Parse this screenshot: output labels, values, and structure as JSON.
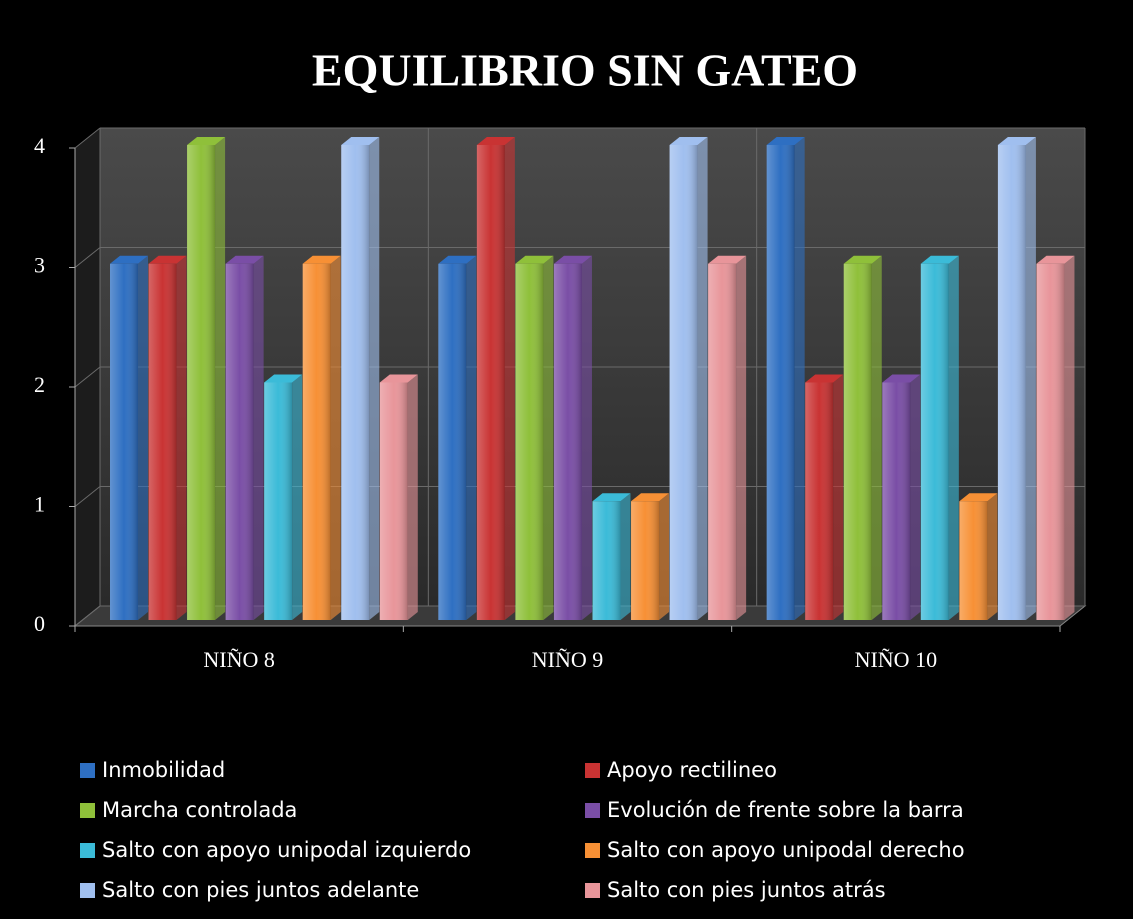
{
  "chart_data": {
    "type": "bar3d",
    "title": "EQUILIBRIO SIN GATEO",
    "categories": [
      "NIÑO 8",
      "NIÑO 9",
      "NIÑO 10"
    ],
    "series": [
      {
        "name": "Inmobilidad",
        "color": "#2e6fc2",
        "values": [
          3,
          3,
          4
        ]
      },
      {
        "name": "Apoyo rectilineo",
        "color": "#c93333",
        "values": [
          3,
          4,
          2
        ]
      },
      {
        "name": "Marcha controlada",
        "color": "#8fc03a",
        "values": [
          4,
          3,
          3
        ]
      },
      {
        "name": "Evolución de frente sobre la barra",
        "color": "#7a4ea6",
        "values": [
          3,
          3,
          2
        ]
      },
      {
        "name": "Salto con apoyo unipodal izquierdo",
        "color": "#3bbbd8",
        "values": [
          2,
          1,
          3
        ]
      },
      {
        "name": "Salto con apoyo unipodal derecho",
        "color": "#f79035",
        "values": [
          3,
          1,
          1
        ]
      },
      {
        "name": "Salto con pies juntos adelante",
        "color": "#a0bfef",
        "values": [
          4,
          4,
          4
        ]
      },
      {
        "name": "Salto con pies juntos atrás",
        "color": "#e8959a",
        "values": [
          2,
          3,
          3
        ]
      }
    ],
    "ylim": [
      0,
      4
    ],
    "yticks": [
      0,
      1,
      2,
      3,
      4
    ],
    "grid": true
  }
}
